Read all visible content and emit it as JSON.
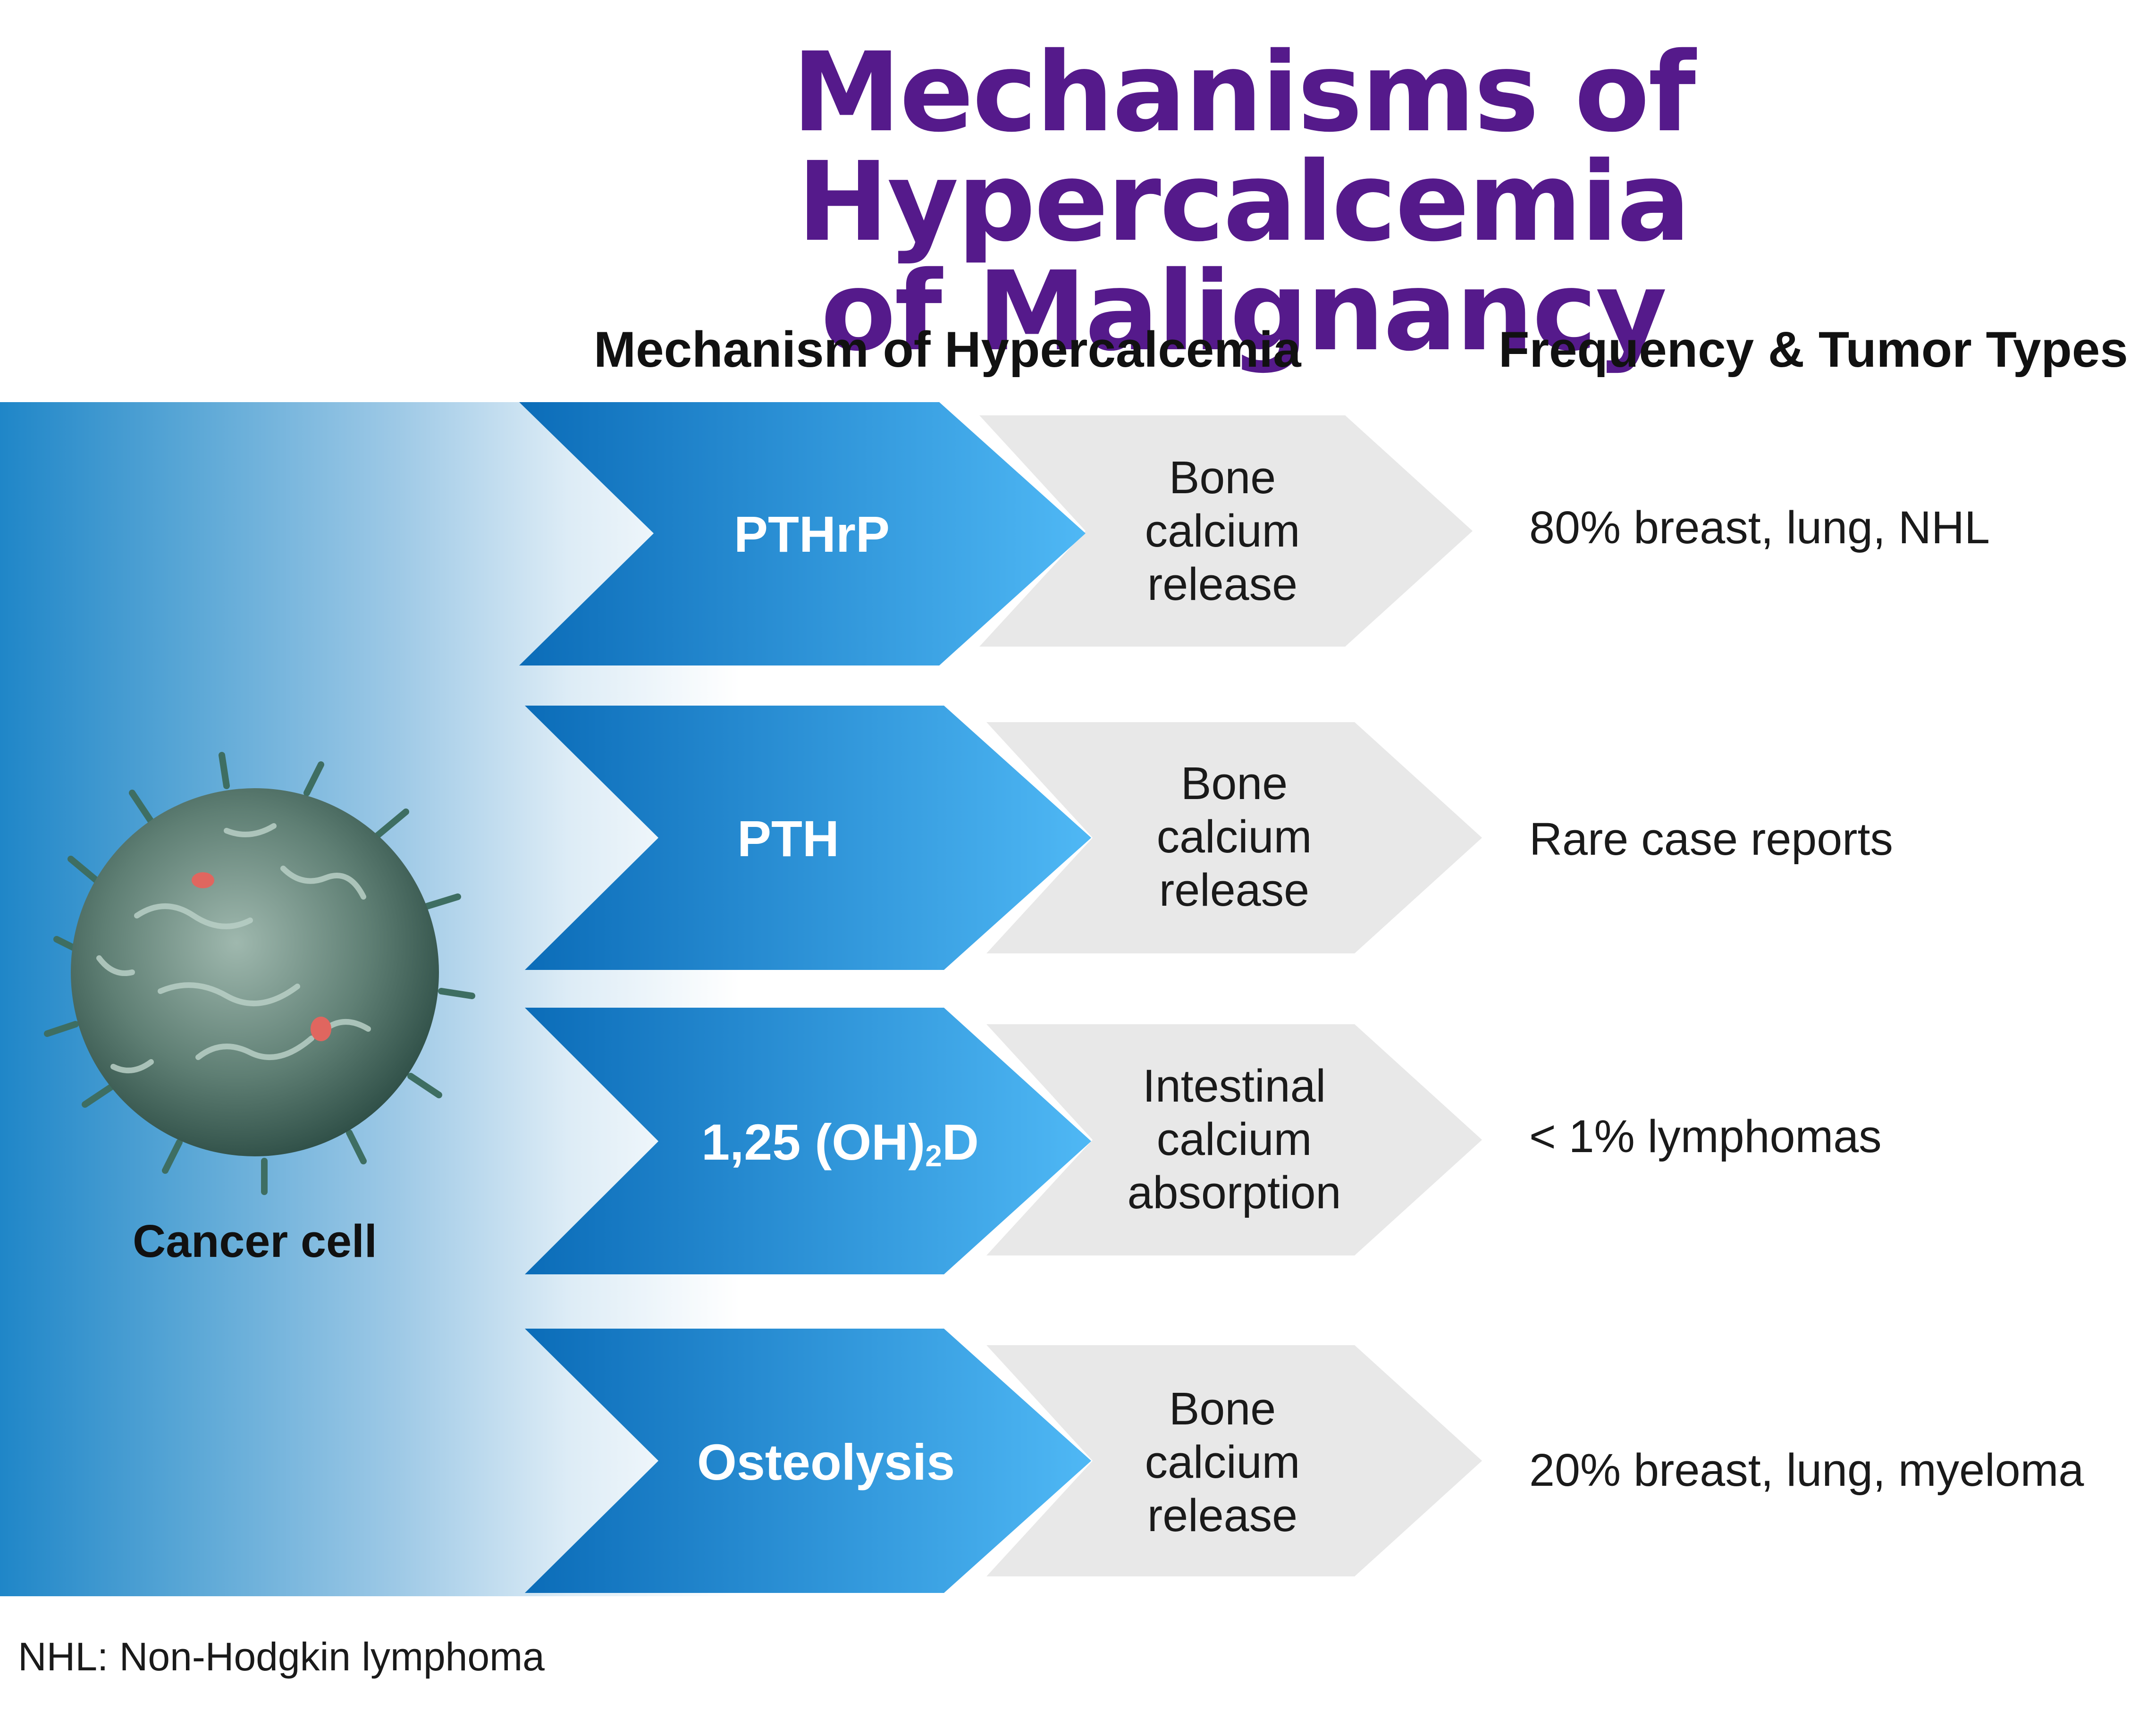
{
  "title": {
    "line1": "Mechanisms of Hypercalcemia",
    "line2": "of Malignancy"
  },
  "columns": {
    "mechanism_header": "Mechanism of Hypercalcemia",
    "frequency_header": "Frequency & Tumor Types"
  },
  "cell": {
    "caption": "Cancer cell",
    "image": "cancer-cell-micrograph"
  },
  "rows": [
    {
      "mechanism": "PTHrP",
      "effect": "Bone\ncalcium\nrelease",
      "frequency": "80% breast, lung, NHL"
    },
    {
      "mechanism": "PTH",
      "effect": "Bone\ncalcium\nrelease",
      "frequency": "Rare case reports"
    },
    {
      "mechanism_main": "1,25 (OH)",
      "mechanism_sub": "2",
      "mechanism_end": "D",
      "effect": "Intestinal\ncalcium\nabsorption",
      "frequency": "< 1% lymphomas"
    },
    {
      "mechanism": "Osteolysis",
      "effect": "Bone\ncalcium\nrelease",
      "frequency": "20% breast, lung, myeloma"
    }
  ],
  "footnote": "NHL: Non-Hodgkin lymphoma",
  "colors": {
    "title": "#551A8B",
    "chevron_dark": "#0b6cb8",
    "chevron_light": "#4fb8f5",
    "effect_arrow": "#e8e8e8"
  }
}
